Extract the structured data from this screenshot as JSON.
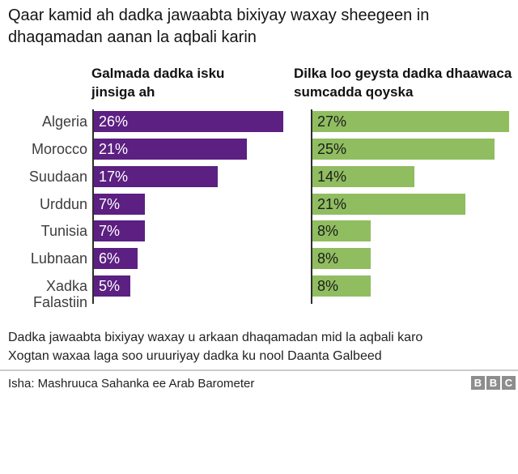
{
  "title": "Qaar kamid ah dadka jawaabta bixiyay waxay sheegeen in dhaqamadan aanan la aqbali karin",
  "chart_data": {
    "type": "bar",
    "orientation": "horizontal",
    "categories": [
      "Algeria",
      "Morocco",
      "Suudaan",
      "Urddun",
      "Tunisia",
      "Lubnaan",
      "Xadka Falastiin"
    ],
    "series": [
      {
        "name": "Galmada dadka isku jinsiga ah",
        "color": "#5c1f82",
        "label_color": "#ffffff",
        "values": [
          26,
          21,
          17,
          7,
          7,
          6,
          5
        ]
      },
      {
        "name": "Dilka loo geysta dadka dhaawaca sumcadda qoyska",
        "color": "#90bd60",
        "label_color": "#1c1c1c",
        "values": [
          27,
          25,
          14,
          21,
          8,
          8,
          8
        ]
      }
    ],
    "value_suffix": "%",
    "xlim": [
      0,
      27
    ],
    "legend_position": "column-headers",
    "grid": false
  },
  "footnotes": [
    "Dadka jawaabta bixiyay waxay u arkaan dhaqamadan mid la aqbali karo",
    "Xogtan waxaa laga soo uruuriyay dadka ku nool Daanta Galbeed"
  ],
  "source": "Isha: Mashruuca Sahanka ee Arab Barometer",
  "logo": {
    "letters": [
      "B",
      "B",
      "C"
    ],
    "color": "#8d8d8d"
  }
}
